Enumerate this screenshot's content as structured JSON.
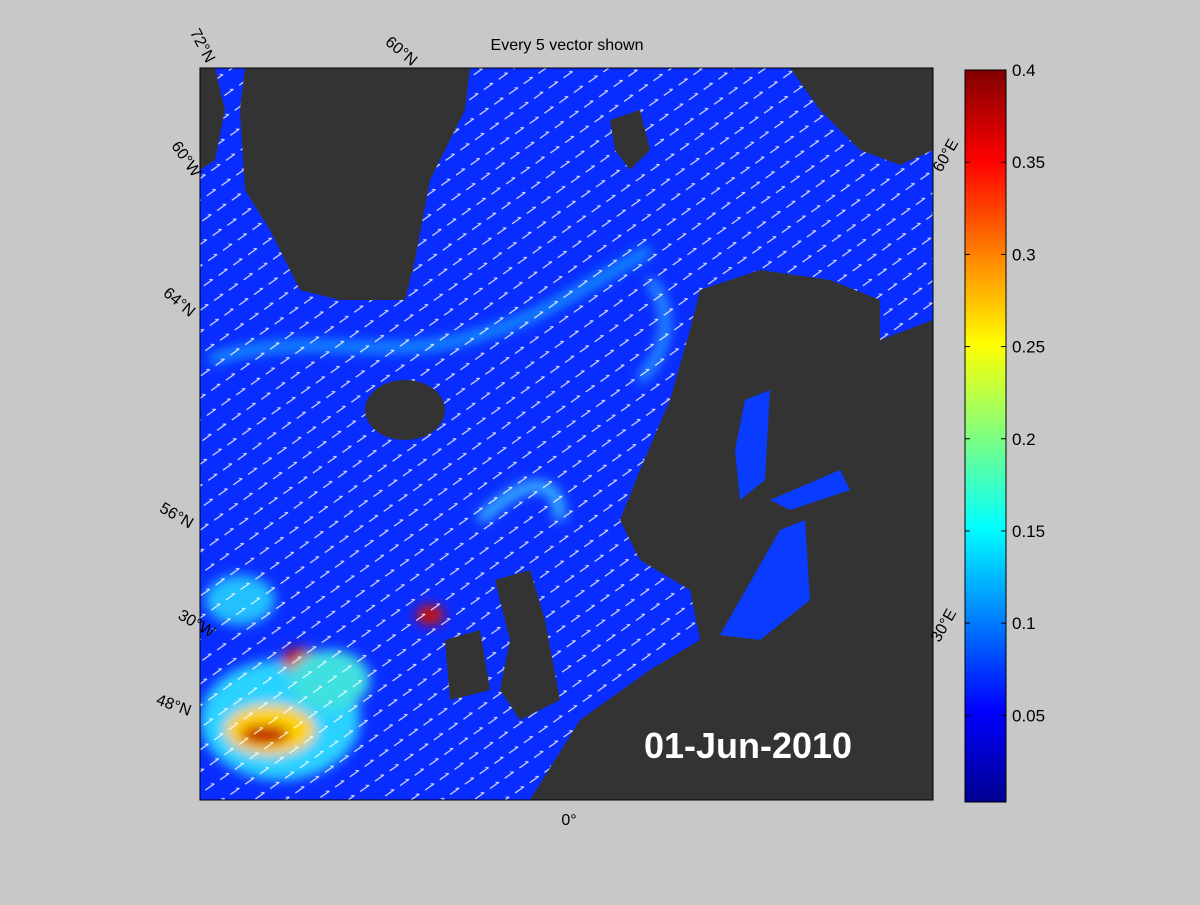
{
  "title": "Every 5 vector shown",
  "date": "01-Jun-2010",
  "graticule_labels": [
    "72°N",
    "60°N",
    "60°W",
    "64°N",
    "56°N",
    "30°W",
    "48°N",
    "0°",
    "60°E",
    "30°E"
  ],
  "colorbar": {
    "lim": [
      0.003,
      0.4
    ],
    "ticks": [
      0.05,
      0.1,
      0.15,
      0.2,
      0.25,
      0.3,
      0.35,
      0.4
    ],
    "colormap": "jet"
  }
}
